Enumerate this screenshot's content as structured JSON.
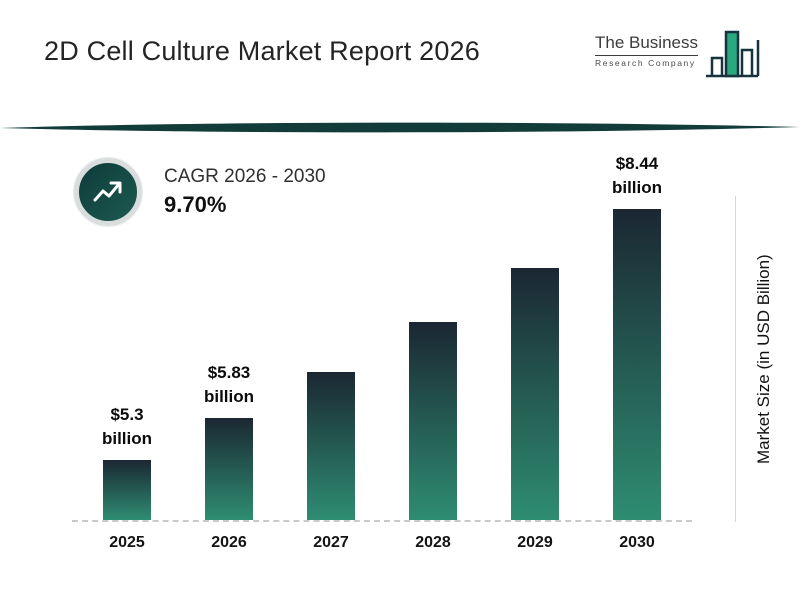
{
  "header": {
    "title": "2D Cell Culture Market Report 2026",
    "logo": {
      "line1": "The Business",
      "line2": "Research Company"
    }
  },
  "cagr": {
    "label": "CAGR 2026 - 2030",
    "value": "9.70%"
  },
  "chart_data": {
    "type": "bar",
    "title": "2D Cell Culture Market Report 2026",
    "categories": [
      "2025",
      "2026",
      "2027",
      "2028",
      "2029",
      "2030"
    ],
    "values": [
      5.3,
      5.83,
      6.4,
      7.02,
      7.7,
      8.44
    ],
    "value_labels": {
      "2025": [
        "$5.3",
        "billion"
      ],
      "2026": [
        "$5.83",
        "billion"
      ],
      "2030": [
        "$8.44",
        "billion"
      ]
    },
    "xlabel": "",
    "ylabel": "Market Size (in USD Billion)",
    "ylim": [
      4.55,
      8.8
    ],
    "grid": false,
    "legend": "none",
    "bar_gradient_top": "#1b2733",
    "bar_gradient_bottom": "#2e8d71"
  },
  "colors": {
    "divider": "#123c39",
    "badge_ring": "#d9dddd",
    "badge_fill": "#0e3b39",
    "logo_accent": "#2aa87e",
    "logo_outline": "#16333f"
  }
}
